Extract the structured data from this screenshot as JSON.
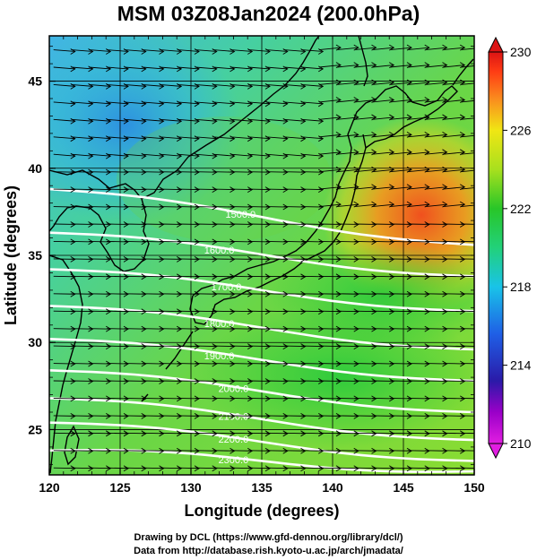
{
  "title": "MSM 03Z08Jan2024 (200.0hPa)",
  "credits": {
    "line1": "Drawing by DCL (https://www.gfd-dennou.org/library/dcl/)",
    "line2": "Data from http://database.rish.kyoto-u.ac.jp/arch/jmadata/"
  },
  "chart_data": {
    "type": "heatmap",
    "title": "MSM 03Z08Jan2024 (200.0hPa)",
    "xlabel": "Longitude (degrees)",
    "ylabel": "Latitude  (degrees)",
    "xlim": [
      120,
      150
    ],
    "ylim": [
      22.4,
      47.6
    ],
    "x_ticks": [
      "120",
      "125",
      "130",
      "135",
      "140",
      "145",
      "150"
    ],
    "y_ticks": [
      "25",
      "30",
      "35",
      "40",
      "45"
    ],
    "grid": true,
    "field": {
      "description_units": "temperature (K)",
      "range": [
        210,
        230
      ],
      "colorbar_ticks": [
        "210",
        "214",
        "218",
        "222",
        "226",
        "230"
      ],
      "warm_center": {
        "lon": 146.5,
        "lat": 38.0,
        "value": 227.5
      },
      "cold_center": {
        "lon": 121.5,
        "lat": 43.0,
        "value": 218.5
      }
    },
    "contours": [
      {
        "label": "1500.0",
        "lat_west": 38.8,
        "lat_east": 35.6,
        "label_lon": 133.5
      },
      {
        "label": "1600.0",
        "lat_west": 36.3,
        "lat_east": 33.8,
        "label_lon": 132.0
      },
      {
        "label": "1700.0",
        "lat_west": 34.2,
        "lat_east": 31.8,
        "label_lon": 132.5
      },
      {
        "label": "1800.0",
        "lat_west": 32.1,
        "lat_east": 29.6,
        "label_lon": 132.0
      },
      {
        "label": "1900.0",
        "lat_west": 30.2,
        "lat_east": 27.8,
        "label_lon": 132.0
      },
      {
        "label": "2000.0",
        "lat_west": 28.4,
        "lat_east": 26.0,
        "label_lon": 133.0
      },
      {
        "label": "2100.0",
        "lat_west": 26.8,
        "lat_east": 24.4,
        "label_lon": 133.0
      },
      {
        "label": "2200.0",
        "lat_west": 25.4,
        "lat_east": 23.2,
        "label_lon": 133.0
      },
      {
        "label": "2300.0",
        "lat_west": 23.8,
        "lat_east": 22.6,
        "label_lon": 133.0
      }
    ],
    "wind": {
      "direction": "westerly",
      "style": "arrows"
    }
  },
  "colors": {
    "scale": [
      "#e11ee1",
      "#9a00c8",
      "#2a1aa8",
      "#1f5fe6",
      "#19c3e8",
      "#22d17a",
      "#28c628",
      "#a8e01e",
      "#f0e614",
      "#fa8c1e",
      "#ff3c14",
      "#dc1414"
    ]
  }
}
